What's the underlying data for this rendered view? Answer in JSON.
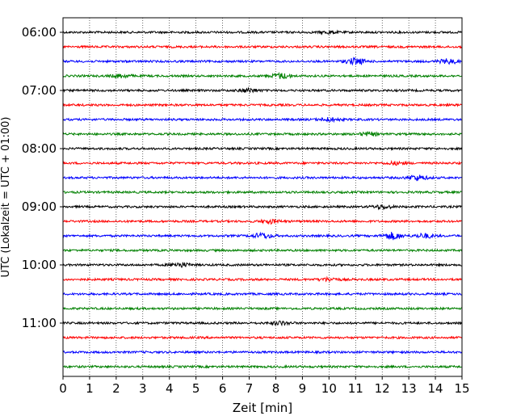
{
  "chart_data": {
    "type": "line",
    "title": "",
    "xlabel": "Zeit  [min]",
    "ylabel": "UTC (Lokalzeit = UTC + 01:00)",
    "xlim": [
      0,
      15
    ],
    "x_ticks": [
      "0",
      "1",
      "2",
      "3",
      "4",
      "5",
      "6",
      "7",
      "8",
      "9",
      "10",
      "11",
      "12",
      "13",
      "14",
      "15"
    ],
    "y_ticks": [
      "06:00",
      "07:00",
      "08:00",
      "09:00",
      "10:00",
      "11:00"
    ],
    "grid": "vertical dotted lines at every minute",
    "trace_interval_minutes": 15,
    "trace_start": "06:00",
    "trace_colors": [
      "#000000",
      "#ff0000",
      "#0000ff",
      "#008000"
    ],
    "traces": [
      {
        "start": "06:00",
        "color": "#000000"
      },
      {
        "start": "06:15",
        "color": "#ff0000"
      },
      {
        "start": "06:30",
        "color": "#0000ff"
      },
      {
        "start": "06:45",
        "color": "#008000"
      },
      {
        "start": "07:00",
        "color": "#000000"
      },
      {
        "start": "07:15",
        "color": "#ff0000"
      },
      {
        "start": "07:30",
        "color": "#0000ff"
      },
      {
        "start": "07:45",
        "color": "#008000"
      },
      {
        "start": "08:00",
        "color": "#000000"
      },
      {
        "start": "08:15",
        "color": "#ff0000"
      },
      {
        "start": "08:30",
        "color": "#0000ff"
      },
      {
        "start": "08:45",
        "color": "#008000"
      },
      {
        "start": "09:00",
        "color": "#000000"
      },
      {
        "start": "09:15",
        "color": "#ff0000"
      },
      {
        "start": "09:30",
        "color": "#0000ff"
      },
      {
        "start": "09:45",
        "color": "#008000"
      },
      {
        "start": "10:00",
        "color": "#000000"
      },
      {
        "start": "10:15",
        "color": "#ff0000"
      },
      {
        "start": "10:30",
        "color": "#0000ff"
      },
      {
        "start": "10:45",
        "color": "#008000"
      },
      {
        "start": "11:00",
        "color": "#000000"
      },
      {
        "start": "11:15",
        "color": "#ff0000"
      },
      {
        "start": "11:30",
        "color": "#0000ff"
      },
      {
        "start": "11:45",
        "color": "#008000"
      }
    ]
  }
}
